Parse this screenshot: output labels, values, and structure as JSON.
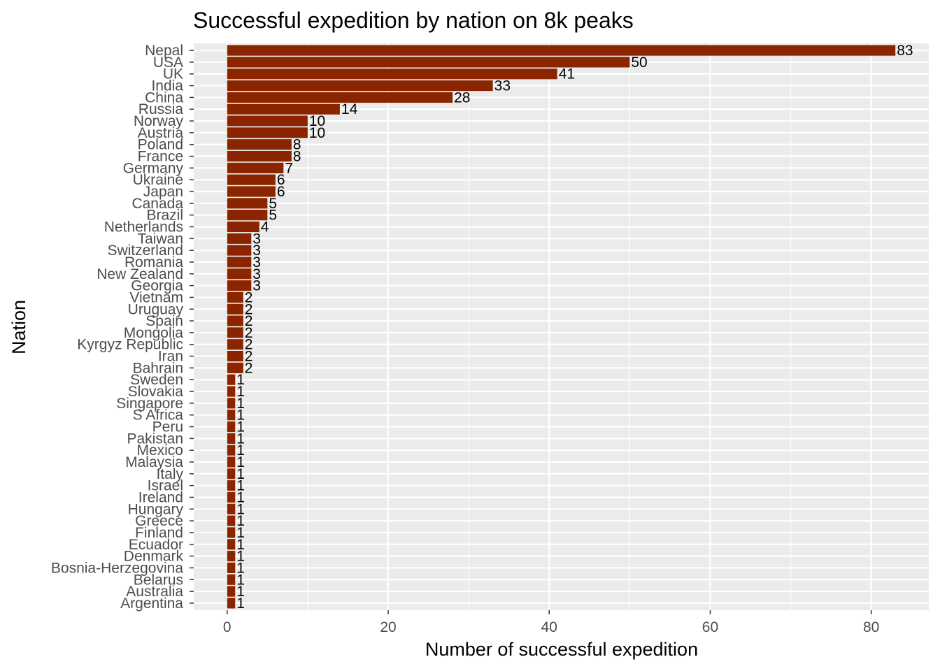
{
  "chart_data": {
    "type": "bar",
    "orientation": "horizontal",
    "title": "Successful expedition by nation on 8k peaks",
    "xlabel": "Number of successful expedition",
    "ylabel": "Nation",
    "xlim": [
      -4.15,
      87.15
    ],
    "xticks": [
      0,
      20,
      40,
      60,
      80
    ],
    "xtick_labels": [
      "0",
      "20",
      "40",
      "60",
      "80"
    ],
    "grid": true,
    "legend": "none",
    "colors": {
      "bar": "#8B2500",
      "panel_background": "#EBEBEB",
      "grid": "#FFFFFF",
      "tick_text": "#4D4D4D",
      "tick_mark": "#333333"
    },
    "categories": [
      "Nepal",
      "USA",
      "UK",
      "India",
      "China",
      "Russia",
      "Norway",
      "Austria",
      "Poland",
      "France",
      "Germany",
      "Ukraine",
      "Japan",
      "Canada",
      "Brazil",
      "Netherlands",
      "Taiwan",
      "Switzerland",
      "Romania",
      "New Zealand",
      "Georgia",
      "Vietnam",
      "Uruguay",
      "Spain",
      "Mongolia",
      "Kyrgyz Republic",
      "Iran",
      "Bahrain",
      "Sweden",
      "Slovakia",
      "Singapore",
      "S Africa",
      "Peru",
      "Pakistan",
      "Mexico",
      "Malaysia",
      "Italy",
      "Israel",
      "Ireland",
      "Hungary",
      "Greece",
      "Finland",
      "Ecuador",
      "Denmark",
      "Bosnia-Herzegovina",
      "Belarus",
      "Australia",
      "Argentina"
    ],
    "values": [
      83,
      50,
      41,
      33,
      28,
      14,
      10,
      10,
      8,
      8,
      7,
      6,
      6,
      5,
      5,
      4,
      3,
      3,
      3,
      3,
      3,
      2,
      2,
      2,
      2,
      2,
      2,
      2,
      1,
      1,
      1,
      1,
      1,
      1,
      1,
      1,
      1,
      1,
      1,
      1,
      1,
      1,
      1,
      1,
      1,
      1,
      1,
      1
    ],
    "data_labels": [
      "83",
      "50",
      "41",
      "33",
      "28",
      "14",
      "10",
      "10",
      "8",
      "8",
      "7",
      "6",
      "6",
      "5",
      "5",
      "4",
      "3",
      "3",
      "3",
      "3",
      "3",
      "2",
      "2",
      "2",
      "2",
      "2",
      "2",
      "2",
      "1",
      "1",
      "1",
      "1",
      "1",
      "1",
      "1",
      "1",
      "1",
      "1",
      "1",
      "1",
      "1",
      "1",
      "1",
      "1",
      "1",
      "1",
      "1",
      "1"
    ]
  }
}
